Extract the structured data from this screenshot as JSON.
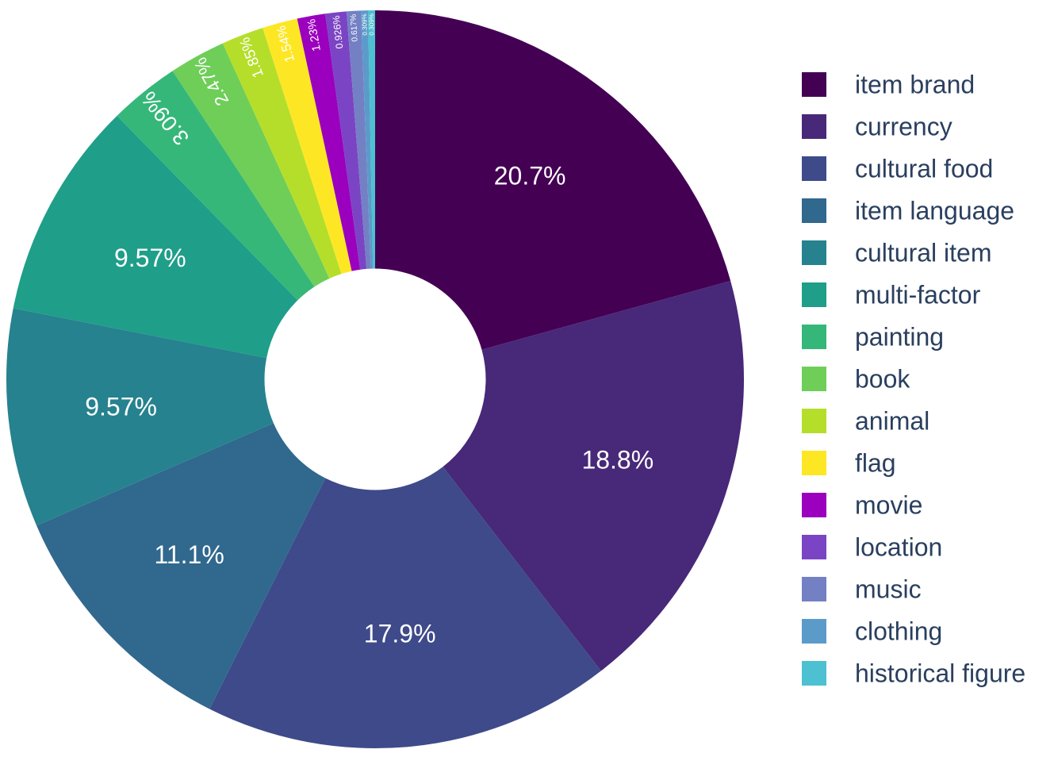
{
  "chart_data": {
    "type": "pie",
    "hole": 0.3,
    "direction": "clockwise",
    "legend_position": "right",
    "slices": [
      {
        "label": "item brand",
        "percent_text": "20.7%",
        "value": 20.7,
        "color": "#440154"
      },
      {
        "label": "currency",
        "percent_text": "18.8%",
        "value": 18.8,
        "color": "#482878"
      },
      {
        "label": "cultural food",
        "percent_text": "17.9%",
        "value": 17.9,
        "color": "#3e4a89"
      },
      {
        "label": "item language",
        "percent_text": "11.1%",
        "value": 11.1,
        "color": "#31688e"
      },
      {
        "label": "cultural item",
        "percent_text": "9.57%",
        "value": 9.57,
        "color": "#26828e"
      },
      {
        "label": "multi-factor",
        "percent_text": "9.57%",
        "value": 9.57,
        "color": "#1f9e89"
      },
      {
        "label": "painting",
        "percent_text": "3.09%",
        "value": 3.09,
        "color": "#35b779"
      },
      {
        "label": "book",
        "percent_text": "2.47%",
        "value": 2.47,
        "color": "#6ece58"
      },
      {
        "label": "animal",
        "percent_text": "1.85%",
        "value": 1.85,
        "color": "#b5de2b"
      },
      {
        "label": "flag",
        "percent_text": "1.54%",
        "value": 1.54,
        "color": "#fde725"
      },
      {
        "label": "movie",
        "percent_text": "1.23%",
        "value": 1.23,
        "color": "#9a00bd"
      },
      {
        "label": "location",
        "percent_text": "0.926%",
        "value": 0.926,
        "color": "#7b44c4"
      },
      {
        "label": "music",
        "percent_text": "0.617%",
        "value": 0.617,
        "color": "#7480c4"
      },
      {
        "label": "clothing",
        "percent_text": "0.309%",
        "value": 0.309,
        "color": "#5b9bc9"
      },
      {
        "label": "historical figure",
        "percent_text": "0.309%",
        "value": 0.309,
        "color": "#4dc0d1"
      }
    ]
  }
}
